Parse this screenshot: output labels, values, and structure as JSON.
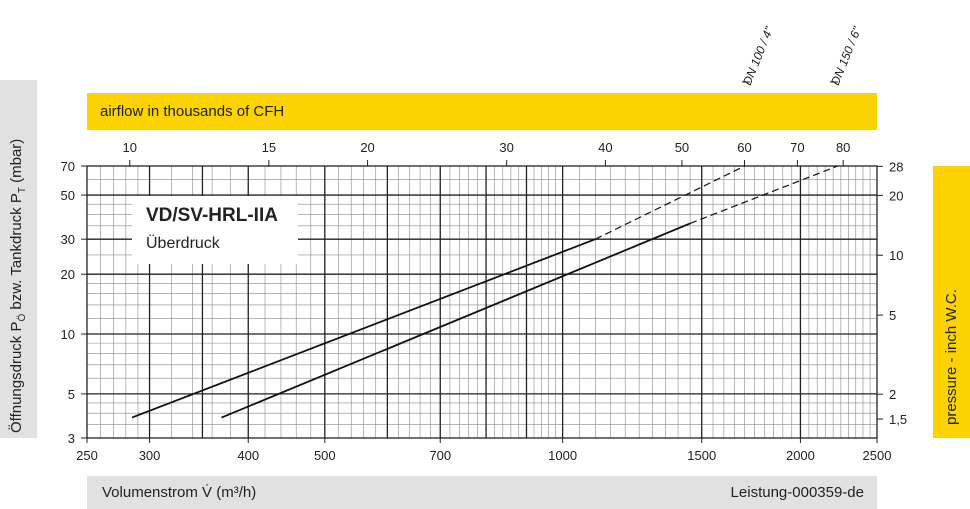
{
  "chart_data": {
    "type": "line",
    "title": "VD/SV-HRL-IIA",
    "subtitle": "Überdruck",
    "xlabel": "Volumenstrom V̇ (m³/h)",
    "ylabel_left": "Öffnungsdruck P",
    "ylabel_left_sub1": "Ö",
    "ylabel_left_mid": " bzw. Tankdruck P",
    "ylabel_left_sub2": "T",
    "ylabel_left_unit": " (mbar)",
    "ylabel_right": "pressure - inch W.C.",
    "xlabel_top": "airflow in thousands of CFH",
    "reference": "Leistung-000359-de",
    "x_scale": "log",
    "y_scale": "log",
    "xlim": [
      250,
      2500
    ],
    "ylim": [
      3,
      70
    ],
    "x_ticks": [
      250,
      300,
      400,
      500,
      700,
      1000,
      1500,
      2000,
      2500
    ],
    "y_ticks": [
      3,
      5,
      10,
      20,
      30,
      50,
      70
    ],
    "top_ticks_cfh": [
      10,
      15,
      20,
      30,
      40,
      50,
      60,
      70,
      80
    ],
    "right_ticks_inwc": [
      1.5,
      2,
      5,
      10,
      20,
      28
    ],
    "right_tick_labels": [
      "1,5",
      "2",
      "5",
      "10",
      "20",
      "28"
    ],
    "grid": true,
    "series": [
      {
        "name": "DN 100 / 4\"",
        "x": [
          285,
          1100
        ],
        "y": [
          3.8,
          30
        ],
        "dashed_to": {
          "x": 1700,
          "y": 70
        }
      },
      {
        "name": "DN 150 / 6\"",
        "x": [
          370,
          1450
        ],
        "y": [
          3.8,
          36
        ],
        "dashed_to": {
          "x": 2230,
          "y": 70
        }
      }
    ]
  }
}
